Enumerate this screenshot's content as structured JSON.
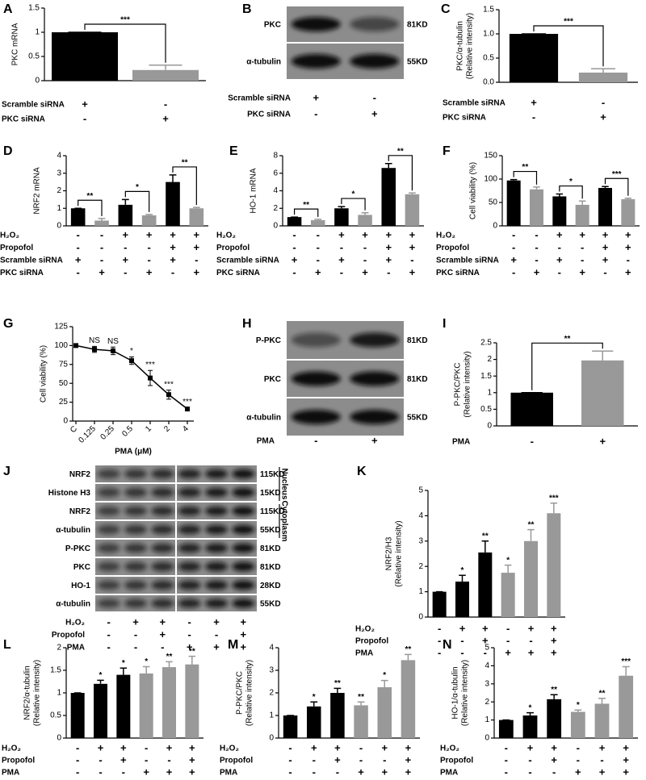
{
  "chart_data": [
    {
      "type": "bar",
      "panel": "A",
      "y_label": [
        "PKC mRNA"
      ],
      "values": [
        1.0,
        0.22
      ],
      "errors": [
        0,
        0.1
      ],
      "colors": [
        "#000000",
        "#999999"
      ],
      "ylim": [
        0,
        1.5
      ],
      "yticks": [
        0,
        0.5,
        1,
        1.5
      ],
      "brackets": [
        {
          "bars": [
            0,
            1
          ],
          "label": "***"
        }
      ],
      "conditions": [
        {
          "name": "Scramble siRNA",
          "signs": [
            "+",
            "-"
          ]
        },
        {
          "name": "PKC siRNA",
          "signs": [
            "-",
            "+"
          ]
        }
      ]
    },
    {
      "type": "bar",
      "panel": "C",
      "y_label": [
        "PKC/α-tubulin",
        "(Relative intensity)"
      ],
      "values": [
        1.0,
        0.2
      ],
      "errors": [
        0,
        0.08
      ],
      "colors": [
        "#000000",
        "#999999"
      ],
      "ylim": [
        0,
        1.5
      ],
      "yticks": [
        {
          "value": 0,
          "label": "0.0"
        },
        0.5,
        {
          "value": 1,
          "label": "1.0"
        },
        1.5
      ],
      "brackets": [
        {
          "bars": [
            0,
            1
          ],
          "label": "***"
        }
      ],
      "conditions": [
        {
          "name": "Scramble siRNA",
          "signs": [
            "+",
            "-"
          ]
        },
        {
          "name": "PKC siRNA",
          "signs": [
            "-",
            "+"
          ]
        }
      ]
    },
    {
      "type": "bar",
      "panel": "D",
      "y_label": [
        "NRF2 mRNA"
      ],
      "values": [
        1.0,
        0.3,
        1.2,
        0.6,
        2.5,
        1.0
      ],
      "errors": [
        0,
        0.12,
        0.3,
        0.05,
        0.4,
        0.05
      ],
      "colors": [
        "#000000",
        "#999999",
        "#000000",
        "#999999",
        "#000000",
        "#999999"
      ],
      "ylim": [
        0,
        4
      ],
      "yticks": [
        0,
        1,
        2,
        3,
        4
      ],
      "brackets": [
        {
          "bars": [
            0,
            1
          ],
          "label": "**"
        },
        {
          "bars": [
            2,
            3
          ],
          "label": "*"
        },
        {
          "bars": [
            4,
            5
          ],
          "label": "**"
        }
      ],
      "conditions": [
        {
          "name": "H₂O₂",
          "signs": [
            "-",
            "-",
            "+",
            "+",
            "+",
            "+"
          ]
        },
        {
          "name": "Propofol",
          "signs": [
            "-",
            "-",
            "-",
            "-",
            "+",
            "+"
          ]
        },
        {
          "name": "Scramble siRNA",
          "signs": [
            "+",
            "-",
            "+",
            "-",
            "+",
            "-"
          ]
        },
        {
          "name": "PKC siRNA",
          "signs": [
            "-",
            "+",
            "-",
            "+",
            "-",
            "+"
          ]
        }
      ]
    },
    {
      "type": "bar",
      "panel": "E",
      "y_label": [
        "HO-1 mRNA"
      ],
      "values": [
        1.0,
        0.65,
        2.0,
        1.25,
        6.6,
        3.6
      ],
      "errors": [
        0,
        0.1,
        0.2,
        0.25,
        0.5,
        0.15
      ],
      "colors": [
        "#000000",
        "#999999",
        "#000000",
        "#999999",
        "#000000",
        "#999999"
      ],
      "ylim": [
        0,
        8
      ],
      "yticks": [
        0,
        2,
        4,
        6,
        8
      ],
      "brackets": [
        {
          "bars": [
            0,
            1
          ],
          "label": "**"
        },
        {
          "bars": [
            2,
            3
          ],
          "label": "*"
        },
        {
          "bars": [
            4,
            5
          ],
          "label": "**"
        }
      ],
      "conditions": [
        {
          "name": "H₂O₂",
          "signs": [
            "-",
            "-",
            "+",
            "+",
            "+",
            "+"
          ]
        },
        {
          "name": "Propofol",
          "signs": [
            "-",
            "-",
            "-",
            "-",
            "+",
            "+"
          ]
        },
        {
          "name": "Scramble siRNA",
          "signs": [
            "+",
            "-",
            "+",
            "-",
            "+",
            "-"
          ]
        },
        {
          "name": "PKC siRNA",
          "signs": [
            "-",
            "+",
            "-",
            "+",
            "-",
            "+"
          ]
        }
      ]
    },
    {
      "type": "bar",
      "panel": "F",
      "y_label": [
        "Cell viability (%)"
      ],
      "values": [
        97,
        78,
        63,
        45,
        81,
        57
      ],
      "errors": [
        2,
        5,
        5,
        8,
        3,
        2
      ],
      "colors": [
        "#000000",
        "#999999",
        "#000000",
        "#999999",
        "#000000",
        "#999999"
      ],
      "ylim": [
        0,
        150
      ],
      "yticks": [
        0,
        50,
        100,
        150
      ],
      "brackets": [
        {
          "bars": [
            0,
            1
          ],
          "label": "**"
        },
        {
          "bars": [
            2,
            3
          ],
          "label": "*"
        },
        {
          "bars": [
            4,
            5
          ],
          "label": "***"
        }
      ],
      "conditions": [
        {
          "name": "H₂O₂",
          "signs": [
            "-",
            "-",
            "+",
            "+",
            "+",
            "+"
          ]
        },
        {
          "name": "Propofol",
          "signs": [
            "-",
            "-",
            "-",
            "-",
            "+",
            "+"
          ]
        },
        {
          "name": "Scramble siRNA",
          "signs": [
            "+",
            "-",
            "+",
            "-",
            "+",
            "-"
          ]
        },
        {
          "name": "PKC siRNA",
          "signs": [
            "-",
            "+",
            "-",
            "+",
            "-",
            "+"
          ]
        }
      ]
    },
    {
      "type": "line",
      "panel": "G",
      "y_label": [
        "Cell viability (%)"
      ],
      "x_label": "PMA (μM)",
      "categories": [
        "C",
        "0.125",
        "0.25",
        "0.5",
        "1",
        "2",
        "4"
      ],
      "values": [
        100,
        95,
        93,
        80,
        57,
        35,
        16
      ],
      "errors": [
        2,
        4,
        5,
        5,
        10,
        6,
        2
      ],
      "point_labels": [
        null,
        "NS",
        "NS",
        "*",
        "***",
        "***",
        "***"
      ],
      "color": "#000000",
      "ylim": [
        0,
        125
      ],
      "yticks": [
        0,
        25,
        50,
        75,
        100,
        125
      ]
    },
    {
      "type": "bar",
      "panel": "I",
      "y_label": [
        "P-PKC/PKC",
        "(Relative intensity)"
      ],
      "values": [
        1.0,
        1.97
      ],
      "errors": [
        0,
        0.28
      ],
      "colors": [
        "#000000",
        "#999999"
      ],
      "ylim": [
        0,
        2.5
      ],
      "yticks": [
        0,
        0.5,
        1,
        1.5,
        2,
        2.5
      ],
      "brackets": [
        {
          "bars": [
            0,
            1
          ],
          "label": "**"
        }
      ],
      "conditions": [
        {
          "name": "PMA",
          "signs": [
            "-",
            "+"
          ]
        }
      ]
    },
    {
      "type": "bar",
      "panel": "K",
      "y_label": [
        "NRF2/H3",
        "(Relative intensity)"
      ],
      "values": [
        1.0,
        1.4,
        2.55,
        1.75,
        3.0,
        4.1
      ],
      "errors": [
        0,
        0.25,
        0.45,
        0.3,
        0.45,
        0.4
      ],
      "colors": [
        "#000000",
        "#000000",
        "#000000",
        "#999999",
        "#999999",
        "#999999"
      ],
      "bar_labels": [
        null,
        "*",
        "**",
        "*",
        "**",
        "***"
      ],
      "ylim": [
        0,
        5
      ],
      "yticks": [
        0,
        1,
        2,
        3,
        4,
        5
      ],
      "conditions": [
        {
          "name": "H₂O₂",
          "signs": [
            "-",
            "+",
            "+",
            "-",
            "+",
            "+"
          ]
        },
        {
          "name": "Propofol",
          "signs": [
            "-",
            "-",
            "+",
            "-",
            "-",
            "+"
          ]
        },
        {
          "name": "PMA",
          "signs": [
            "-",
            "-",
            "-",
            "+",
            "+",
            "+"
          ]
        }
      ]
    },
    {
      "type": "bar",
      "panel": "L",
      "y_label": [
        "NRF2/α-tubulin",
        "(Relative intensity)"
      ],
      "values": [
        1.0,
        1.2,
        1.4,
        1.43,
        1.57,
        1.63
      ],
      "errors": [
        0,
        0.08,
        0.15,
        0.15,
        0.12,
        0.18
      ],
      "colors": [
        "#000000",
        "#000000",
        "#000000",
        "#999999",
        "#999999",
        "#999999"
      ],
      "bar_labels": [
        null,
        "*",
        "*",
        "*",
        "**",
        "**"
      ],
      "ylim": [
        0,
        2
      ],
      "yticks": [
        0,
        0.5,
        1,
        1.5,
        2
      ],
      "conditions": [
        {
          "name": "H₂O₂",
          "signs": [
            "-",
            "+",
            "+",
            "-",
            "+",
            "+"
          ]
        },
        {
          "name": "Propofol",
          "signs": [
            "-",
            "-",
            "+",
            "-",
            "-",
            "+"
          ]
        },
        {
          "name": "PMA",
          "signs": [
            "-",
            "-",
            "-",
            "+",
            "+",
            "+"
          ]
        }
      ]
    },
    {
      "type": "bar",
      "panel": "M",
      "y_label": [
        "P-PKC/PKC",
        "(Relative intensity)"
      ],
      "values": [
        1.0,
        1.4,
        2.0,
        1.45,
        2.25,
        3.45
      ],
      "errors": [
        0,
        0.2,
        0.2,
        0.15,
        0.3,
        0.25
      ],
      "colors": [
        "#000000",
        "#000000",
        "#000000",
        "#999999",
        "#999999",
        "#999999"
      ],
      "bar_labels": [
        null,
        "*",
        "**",
        "**",
        "*",
        "**"
      ],
      "ylim": [
        0,
        4
      ],
      "yticks": [
        0,
        1,
        2,
        3,
        4
      ],
      "conditions": [
        {
          "name": "H₂O₂",
          "signs": [
            "-",
            "+",
            "+",
            "-",
            "+",
            "+"
          ]
        },
        {
          "name": "Propofol",
          "signs": [
            "-",
            "-",
            "+",
            "-",
            "-",
            "+"
          ]
        },
        {
          "name": "PMA",
          "signs": [
            "-",
            "-",
            "-",
            "+",
            "+",
            "+"
          ]
        }
      ]
    },
    {
      "type": "bar",
      "panel": "N",
      "y_label": [
        "HO-1/α-tubulin",
        "(Relative intensity)"
      ],
      "values": [
        1.0,
        1.25,
        2.15,
        1.45,
        1.9,
        3.45
      ],
      "errors": [
        0,
        0.15,
        0.25,
        0.1,
        0.3,
        0.5
      ],
      "colors": [
        "#000000",
        "#000000",
        "#000000",
        "#999999",
        "#999999",
        "#999999"
      ],
      "bar_labels": [
        null,
        "*",
        "**",
        "*",
        "**",
        "***"
      ],
      "ylim": [
        0,
        5
      ],
      "yticks": [
        0,
        1,
        2,
        3,
        4,
        5
      ],
      "conditions": [
        {
          "name": "H₂O₂",
          "signs": [
            "-",
            "+",
            "+",
            "-",
            "+",
            "+"
          ]
        },
        {
          "name": "Propofol",
          "signs": [
            "-",
            "-",
            "+",
            "-",
            "-",
            "+"
          ]
        },
        {
          "name": "PMA",
          "signs": [
            "-",
            "-",
            "-",
            "+",
            "+",
            "+"
          ]
        }
      ]
    }
  ],
  "blots": [
    {
      "panel": "B",
      "rows": [
        {
          "label": "PKC",
          "size": "81KD"
        },
        {
          "label": "α-tubulin",
          "size": "55KD"
        }
      ],
      "conditions": [
        {
          "name": "Scramble siRNA",
          "signs": [
            "+",
            "-"
          ]
        },
        {
          "name": "PKC siRNA",
          "signs": [
            "-",
            "+"
          ]
        }
      ]
    },
    {
      "panel": "H",
      "rows": [
        {
          "label": "P-PKC",
          "size": "81KD"
        },
        {
          "label": "PKC",
          "size": "81KD"
        },
        {
          "label": "α-tubulin",
          "size": "55KD"
        }
      ],
      "conditions": [
        {
          "name": "PMA",
          "signs": [
            "-",
            "+"
          ]
        }
      ]
    },
    {
      "panel": "J",
      "rows": [
        {
          "label": "NRF2",
          "size": "115KD"
        },
        {
          "label": "Histone H3",
          "size": "15KD"
        },
        {
          "label": "NRF2",
          "size": "115KD"
        },
        {
          "label": "α-tubulin",
          "size": "55KD"
        },
        {
          "label": "P-PKC",
          "size": "81KD"
        },
        {
          "label": "PKC",
          "size": "81KD"
        },
        {
          "label": "HO-1",
          "size": "28KD"
        },
        {
          "label": "α-tubulin",
          "size": "55KD"
        }
      ],
      "groups": [
        {
          "label": "Nucleus",
          "rows": [
            0,
            1
          ]
        },
        {
          "label": "Cytoplasm",
          "rows": [
            2,
            3
          ]
        }
      ],
      "conditions": [
        {
          "name": "H₂O₂",
          "signs": [
            "-",
            "+",
            "+",
            "-",
            "+",
            "+"
          ]
        },
        {
          "name": "Propofol",
          "signs": [
            "-",
            "-",
            "+",
            "-",
            "-",
            "+"
          ]
        },
        {
          "name": "PMA",
          "signs": [
            "-",
            "-",
            "-",
            "+",
            "+",
            "+"
          ]
        }
      ]
    }
  ]
}
